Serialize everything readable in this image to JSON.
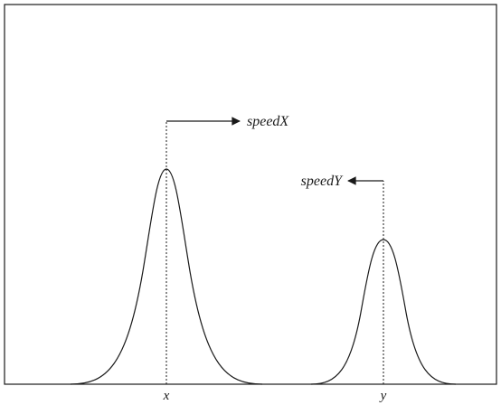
{
  "diagram": {
    "peaks": [
      {
        "axis_label": "x",
        "speed_label": "speedX",
        "arrow_direction": "right",
        "relative_height": 1.0
      },
      {
        "axis_label": "y",
        "speed_label": "speedY",
        "arrow_direction": "left",
        "relative_height": 0.66
      }
    ],
    "colors": {
      "line": "#1a1a1a",
      "background": "#ffffff"
    }
  }
}
